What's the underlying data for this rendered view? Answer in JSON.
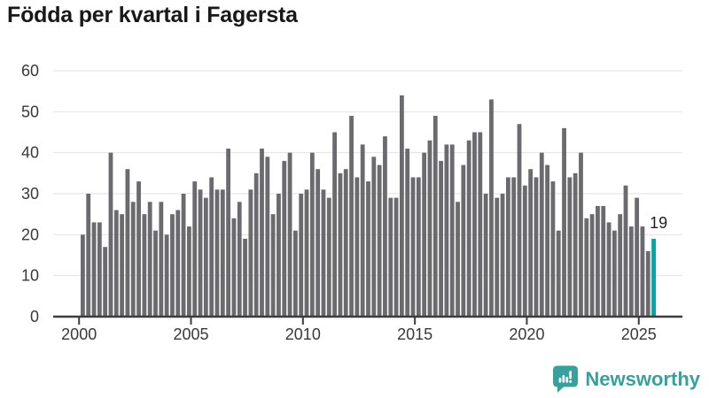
{
  "title": "Födda per kvartal i Fagersta",
  "annotation": {
    "label": "19"
  },
  "branding": {
    "name": "Newsworthy",
    "icon": "newsworthy-speech-bubble-barchart-icon",
    "color": "#38a09d"
  },
  "chart_data": {
    "type": "bar",
    "title": "Födda per kvartal i Fagersta",
    "frequency": "quarterly",
    "x_start": "2000-Q1",
    "x_end": "2025-Q3",
    "values": [
      20,
      30,
      23,
      23,
      17,
      40,
      26,
      25,
      36,
      28,
      33,
      25,
      28,
      21,
      28,
      20,
      25,
      26,
      30,
      22,
      33,
      31,
      29,
      34,
      31,
      31,
      41,
      24,
      28,
      19,
      31,
      35,
      41,
      39,
      25,
      30,
      38,
      40,
      21,
      30,
      31,
      40,
      36,
      31,
      29,
      45,
      35,
      36,
      49,
      34,
      42,
      33,
      39,
      37,
      44,
      29,
      29,
      54,
      41,
      34,
      34,
      40,
      43,
      49,
      38,
      42,
      42,
      28,
      37,
      43,
      45,
      45,
      30,
      53,
      29,
      30,
      34,
      34,
      47,
      32,
      36,
      34,
      40,
      37,
      33,
      21,
      46,
      34,
      35,
      40,
      24,
      25,
      27,
      27,
      23,
      21,
      25,
      32,
      22,
      29,
      22,
      16,
      19
    ],
    "highlight": {
      "index": 102,
      "quarter": "2025-Q3",
      "value": 19,
      "label": "19",
      "color": "#00a5a5"
    },
    "bar_color": "#6a6a6f",
    "grid_color": "#e2e2e2",
    "axis_color": "#3d3d3d",
    "label_color": "#383838",
    "y_ticks": [
      0,
      10,
      20,
      30,
      40,
      50,
      60
    ],
    "x_ticks": [
      2000,
      2005,
      2010,
      2015,
      2020,
      2025
    ],
    "ylim": [
      0,
      60
    ],
    "grid": true,
    "legend": "none"
  }
}
